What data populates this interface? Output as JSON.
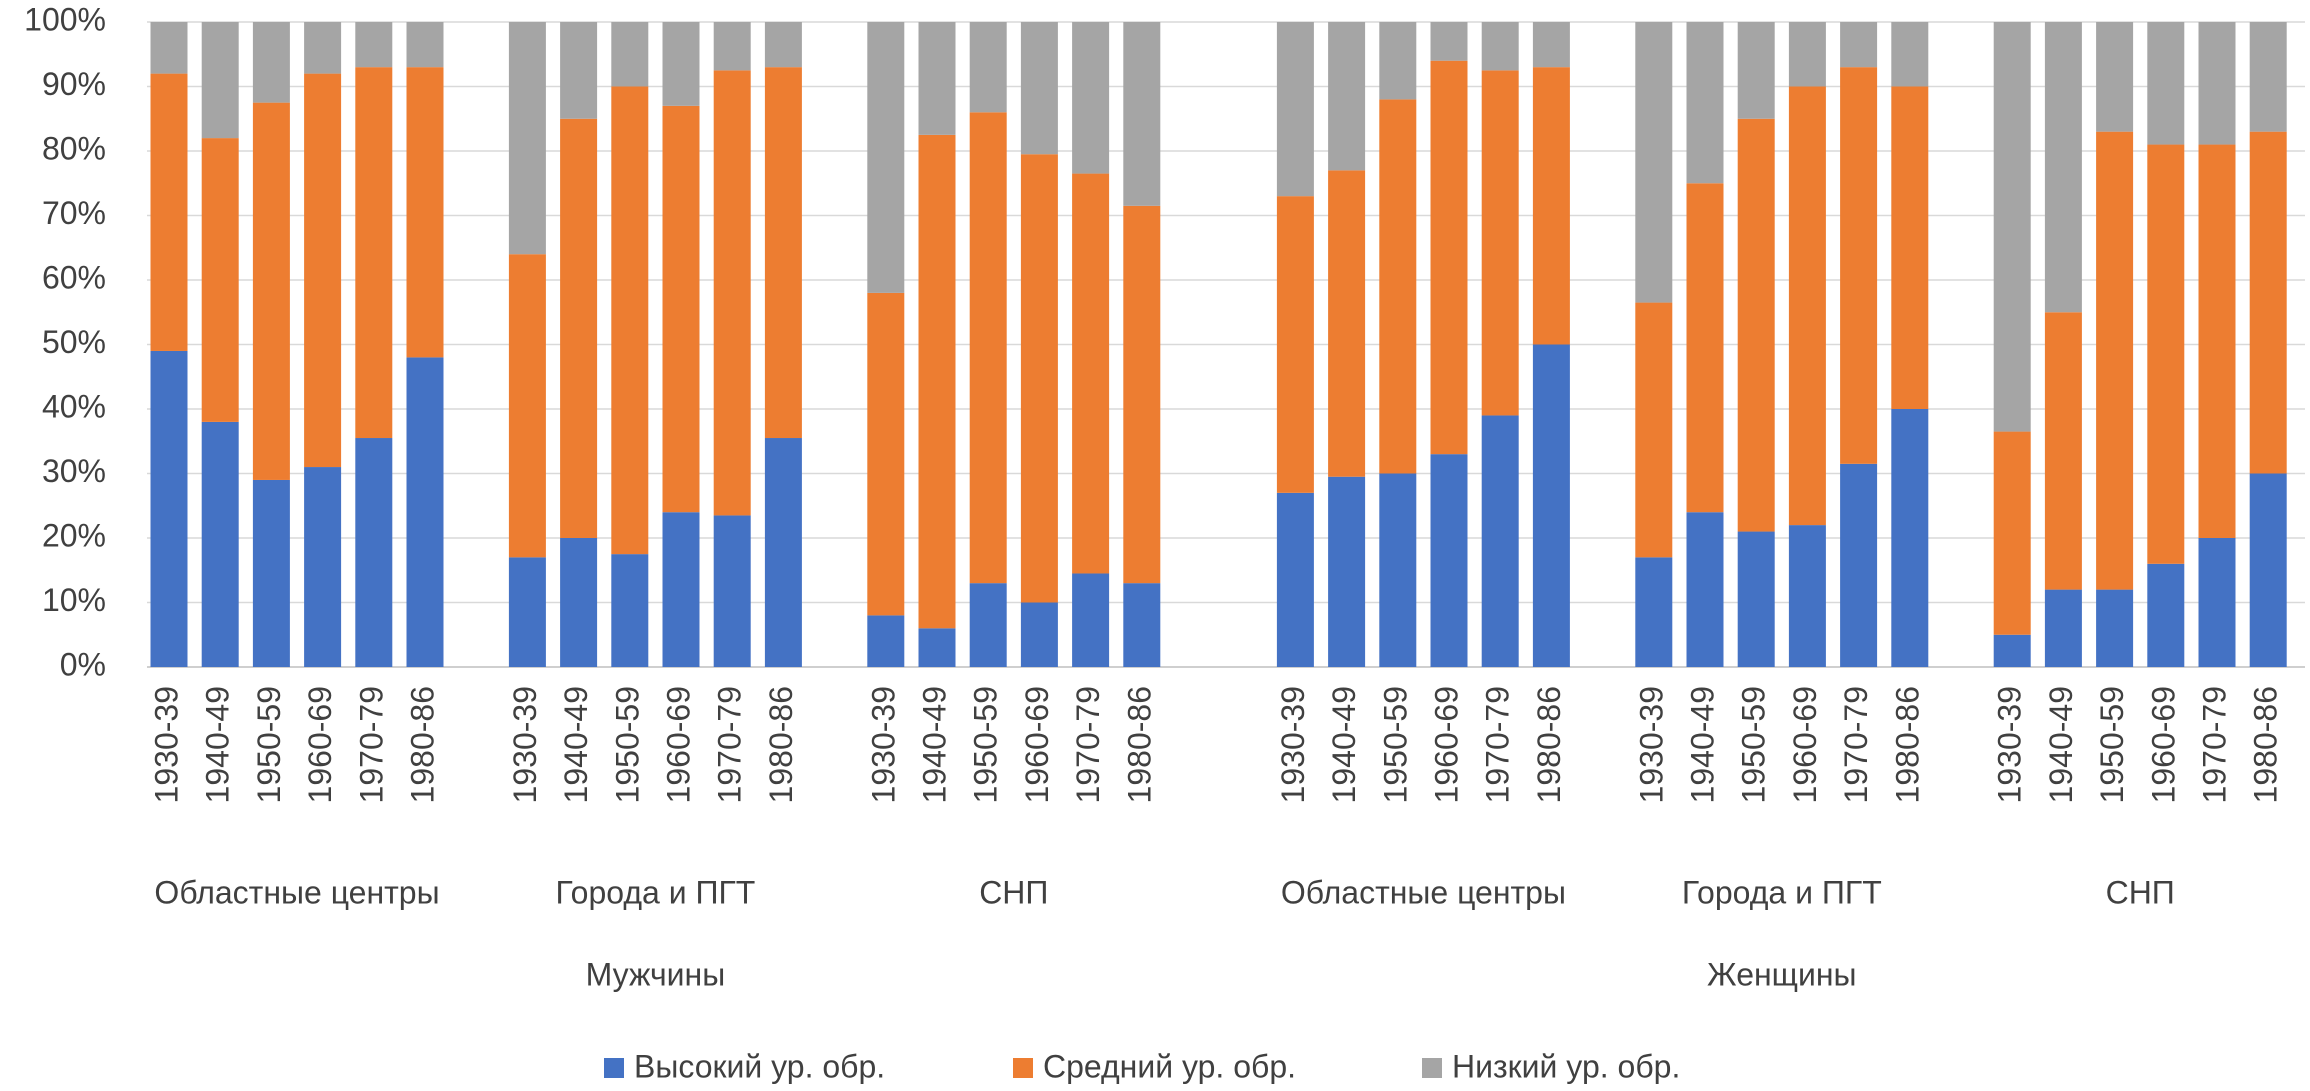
{
  "chart_data": {
    "type": "stacked_bar",
    "groups": [
      {
        "label": "Мужчины",
        "subgroups": [
          {
            "label": "Областные центры",
            "categories": [
              "1930-39",
              "1940-49",
              "1950-59",
              "1960-69",
              "1970-79",
              "1980-86"
            ]
          },
          {
            "label": "Города и ПГТ",
            "categories": [
              "1930-39",
              "1940-49",
              "1950-59",
              "1960-69",
              "1970-79",
              "1980-86"
            ]
          },
          {
            "label": "СНП",
            "categories": [
              "1930-39",
              "1940-49",
              "1950-59",
              "1960-69",
              "1970-79",
              "1980-86"
            ]
          }
        ]
      },
      {
        "label": "Женщины",
        "subgroups": [
          {
            "label": "Областные центры",
            "categories": [
              "1930-39",
              "1940-49",
              "1950-59",
              "1960-69",
              "1970-79",
              "1980-86"
            ]
          },
          {
            "label": "Города и ПГТ",
            "categories": [
              "1930-39",
              "1940-49",
              "1950-59",
              "1960-69",
              "1970-79",
              "1980-86"
            ]
          },
          {
            "label": "СНП",
            "categories": [
              "1930-39",
              "1940-49",
              "1950-59",
              "1960-69",
              "1970-79",
              "1980-86"
            ]
          }
        ]
      }
    ],
    "series": [
      {
        "name": "Высокий ур. обр.",
        "color": "#4472c4",
        "values": [
          49,
          38,
          29,
          31,
          35.5,
          48,
          17,
          20,
          17.5,
          24,
          23.5,
          35.5,
          8,
          6,
          13,
          10,
          14.5,
          13,
          27,
          29.5,
          30,
          33,
          39,
          50,
          17,
          24,
          21,
          22,
          31.5,
          40,
          5,
          12,
          12,
          16,
          20,
          30
        ]
      },
      {
        "name": "Средний ур. обр.",
        "color": "#ed7d31",
        "values": [
          43,
          44,
          58.5,
          61,
          57.5,
          45,
          47,
          65,
          72.5,
          63,
          69,
          57.5,
          50,
          76.5,
          73,
          69.5,
          62,
          58.5,
          46,
          47.5,
          58,
          61,
          53.5,
          43,
          39.5,
          51,
          64,
          68,
          61.5,
          50,
          31.5,
          43,
          71,
          65,
          61,
          53
        ]
      },
      {
        "name": "Низкий ур. обр.",
        "color": "#a5a5a5",
        "values": [
          8,
          18,
          12.5,
          8,
          7,
          7,
          36,
          15,
          10,
          13,
          7.5,
          7,
          42,
          17.5,
          14,
          20.5,
          23.5,
          28.5,
          27,
          23,
          12,
          6,
          7.5,
          7,
          43.5,
          25,
          15,
          10,
          7,
          10,
          63.5,
          45,
          17,
          19,
          19,
          17
        ]
      }
    ],
    "ylim": [
      0,
      100
    ],
    "yticks": [
      {
        "value": 0,
        "label": "0%"
      },
      {
        "value": 10,
        "label": "10%"
      },
      {
        "value": 20,
        "label": "20%"
      },
      {
        "value": 30,
        "label": "30%"
      },
      {
        "value": 40,
        "label": "40%"
      },
      {
        "value": 50,
        "label": "50%"
      },
      {
        "value": 60,
        "label": "60%"
      },
      {
        "value": 70,
        "label": "70%"
      },
      {
        "value": 80,
        "label": "80%"
      },
      {
        "value": 90,
        "label": "90%"
      },
      {
        "value": 100,
        "label": "100%"
      }
    ],
    "grid": true,
    "legend": "bottom"
  }
}
